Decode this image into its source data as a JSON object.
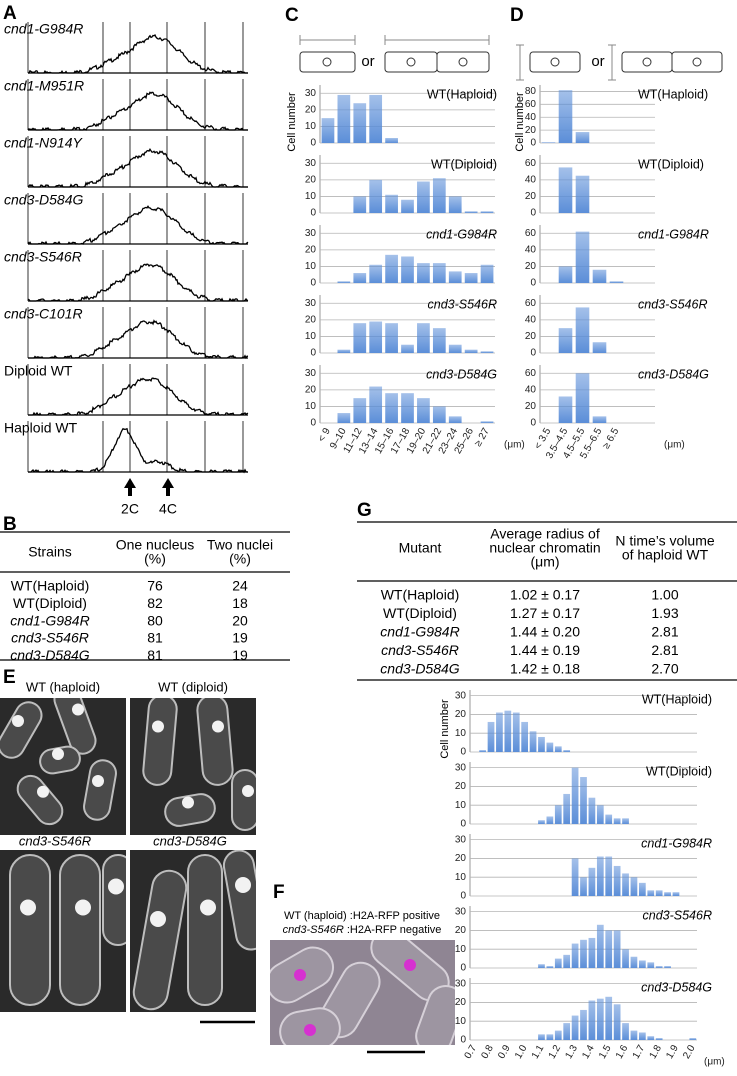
{
  "panel_labels": [
    "A",
    "B",
    "C",
    "D",
    "E",
    "F",
    "G"
  ],
  "panel_a": {
    "traces": [
      "cnd1-G984R",
      "cnd1-M951R",
      "cnd1-N914Y",
      "cnd3-D584G",
      "cnd3-S546R",
      "cnd3-C101R",
      "Diploid WT",
      "Haploid WT"
    ],
    "markers": [
      "2C",
      "4C"
    ]
  },
  "panel_c_schematic": {
    "or": "or"
  },
  "panel_d_schematic": {
    "or": "or"
  },
  "table_b": {
    "header": [
      [
        "Strains"
      ],
      [
        "One nucleus",
        "(%)"
      ],
      [
        "Two nuclei",
        "(%)"
      ]
    ],
    "rows": [
      [
        "WT(Haploid)",
        "76",
        "24"
      ],
      [
        "WT(Diploid)",
        "82",
        "18"
      ],
      [
        "cnd1-G984R",
        "80",
        "20"
      ],
      [
        "cnd3-S546R",
        "81",
        "19"
      ],
      [
        "cnd3-D584G",
        "81",
        "19"
      ]
    ]
  },
  "table_g": {
    "header": [
      [
        "Mutant"
      ],
      [
        "Average radius of",
        "nuclear chromatin",
        "(μm)"
      ],
      [
        "N time’s volume",
        "of haploid WT"
      ]
    ],
    "rows": [
      [
        "WT(Haploid)",
        "1.02 ± 0.17",
        "1.00"
      ],
      [
        "WT(Diploid)",
        "1.27 ± 0.17",
        "1.93"
      ],
      [
        "cnd1-G984R",
        "1.44 ± 0.20",
        "2.81"
      ],
      [
        "cnd3-S546R",
        "1.44 ± 0.19",
        "2.81"
      ],
      [
        "cnd3-D584G",
        "1.42 ± 0.18",
        "2.70"
      ]
    ]
  },
  "panel_e": {
    "images": [
      "WT (haploid)",
      "WT (diploid)",
      "cnd3-S546R",
      "cnd3-D584G"
    ]
  },
  "panel_f": {
    "legend": [
      [
        "WT (haploid)",
        " :H2A-RFP positive"
      ],
      [
        "cnd3-S546R",
        " :H2A-RFP negative"
      ]
    ]
  },
  "chart_data": [
    {
      "type": "bar",
      "color": "#5b8ed8",
      "xlabel": "(μm)",
      "ylabel": "Cell number",
      "categories": [
        "< 9",
        "9–10",
        "11–12",
        "13–14",
        "15–16",
        "17–18",
        "19–20",
        "21–22",
        "23–24",
        "25–26",
        "≥ 27"
      ],
      "panels": [
        {
          "title": "WT(Haploid)",
          "values": [
            15,
            29,
            24,
            29,
            3,
            0,
            0,
            0,
            0,
            0,
            0
          ],
          "ylim": [
            0,
            35
          ],
          "yticks": [
            0,
            10,
            20,
            30
          ]
        },
        {
          "title": "WT(Diploid)",
          "values": [
            0,
            0,
            10,
            20,
            11,
            8,
            19,
            21,
            10,
            1,
            1
          ],
          "ylim": [
            0,
            35
          ],
          "yticks": [
            0,
            10,
            20,
            30
          ]
        },
        {
          "title": "cnd1-G984R",
          "values": [
            0,
            1,
            6,
            11,
            17,
            16,
            12,
            12,
            7,
            6,
            11
          ],
          "ylim": [
            0,
            35
          ],
          "yticks": [
            0,
            10,
            20,
            30
          ]
        },
        {
          "title": "cnd3-S546R",
          "values": [
            0,
            2,
            18,
            19,
            18,
            5,
            18,
            15,
            5,
            2,
            1
          ],
          "ylim": [
            0,
            35
          ],
          "yticks": [
            0,
            10,
            20,
            30
          ]
        },
        {
          "title": "cnd3-D584G",
          "values": [
            0,
            6,
            15,
            22,
            18,
            18,
            15,
            10,
            4,
            0,
            1
          ],
          "ylim": [
            0,
            35
          ],
          "yticks": [
            0,
            10,
            20,
            30
          ]
        }
      ]
    },
    {
      "type": "bar",
      "color": "#5b8ed8",
      "xlabel": "(μm)",
      "ylabel": "Cell number",
      "categories": [
        "< 3.5",
        "3.5–4.5",
        "4.5–5.5",
        "5.5–6.5",
        "≥ 6.5"
      ],
      "panels": [
        {
          "title": "WT(Haploid)",
          "values": [
            1,
            82,
            17,
            0,
            0
          ],
          "ylim": [
            0,
            90
          ],
          "yticks": [
            0,
            20,
            40,
            60,
            80
          ]
        },
        {
          "title": "WT(Diploid)",
          "values": [
            0,
            55,
            45,
            0,
            0
          ],
          "ylim": [
            0,
            70
          ],
          "yticks": [
            0,
            20,
            40,
            60
          ]
        },
        {
          "title": "cnd1-G984R",
          "values": [
            0,
            20,
            62,
            16,
            2
          ],
          "ylim": [
            0,
            70
          ],
          "yticks": [
            0,
            20,
            40,
            60
          ]
        },
        {
          "title": "cnd3-S546R",
          "values": [
            0,
            30,
            55,
            13,
            0
          ],
          "ylim": [
            0,
            70
          ],
          "yticks": [
            0,
            20,
            40,
            60
          ]
        },
        {
          "title": "cnd3-D584G",
          "values": [
            0,
            32,
            60,
            8,
            0
          ],
          "ylim": [
            0,
            70
          ],
          "yticks": [
            0,
            20,
            40,
            60
          ]
        }
      ]
    },
    {
      "type": "bar",
      "color": "#5b8ed8",
      "xlabel": "(μm)",
      "ylabel": "Cell number",
      "categories": [
        "0.7",
        null,
        "0.8",
        null,
        "0.9",
        null,
        "1.0",
        null,
        "1.1",
        null,
        "1.2",
        null,
        "1.3",
        null,
        "1.4",
        null,
        "1.5",
        null,
        "1.6",
        null,
        "1.7",
        null,
        "1.8",
        null,
        "1.9",
        null,
        "2.0"
      ],
      "panels": [
        {
          "title": "WT(Haploid)",
          "values": [
            0,
            1,
            16,
            21,
            22,
            21,
            16,
            11,
            8,
            5,
            3,
            1,
            0,
            0,
            0,
            0,
            0,
            0,
            0,
            0,
            0,
            0,
            0,
            0,
            0,
            0,
            0
          ],
          "ylim": [
            0,
            33
          ],
          "yticks": [
            0,
            10,
            20,
            30
          ]
        },
        {
          "title": "WT(Diploid)",
          "values": [
            0,
            0,
            0,
            0,
            0,
            0,
            0,
            0,
            2,
            4,
            10,
            16,
            30,
            25,
            14,
            10,
            5,
            3,
            3,
            0,
            0,
            0,
            0,
            0,
            0,
            0,
            0
          ],
          "ylim": [
            0,
            33
          ],
          "yticks": [
            0,
            10,
            20,
            30
          ]
        },
        {
          "title": "cnd1-G984R",
          "values": [
            0,
            0,
            0,
            0,
            0,
            0,
            0,
            0,
            0,
            0,
            0,
            0,
            20,
            10,
            15,
            21,
            21,
            16,
            12,
            10,
            7,
            3,
            3,
            2,
            2,
            0,
            0
          ],
          "ylim": [
            0,
            33
          ],
          "yticks": [
            0,
            10,
            20,
            30
          ]
        },
        {
          "title": "cnd3-S546R",
          "values": [
            0,
            0,
            0,
            0,
            0,
            0,
            0,
            0,
            2,
            1,
            5,
            7,
            13,
            15,
            16,
            23,
            20,
            20,
            10,
            6,
            4,
            3,
            1,
            1,
            0,
            0,
            0
          ],
          "ylim": [
            0,
            33
          ],
          "yticks": [
            0,
            10,
            20,
            30
          ]
        },
        {
          "title": "cnd3-D584G",
          "values": [
            0,
            0,
            0,
            0,
            0,
            0,
            0,
            0,
            3,
            3,
            5,
            9,
            13,
            16,
            21,
            22,
            23,
            19,
            9,
            5,
            4,
            2,
            1,
            0,
            0,
            0,
            1
          ],
          "ylim": [
            0,
            33
          ],
          "yticks": [
            0,
            10,
            20,
            30
          ]
        }
      ]
    }
  ]
}
